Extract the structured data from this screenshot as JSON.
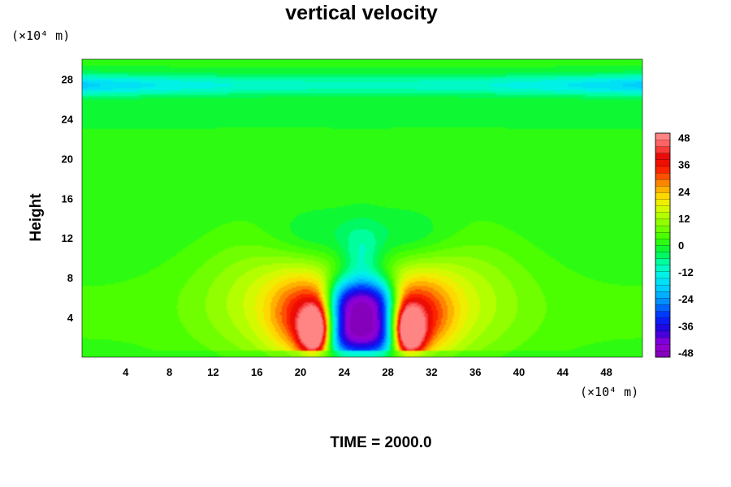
{
  "chart_data": {
    "type": "heatmap",
    "title": "vertical velocity",
    "ylabel": "Height",
    "x_unit": "(×10⁴ m)",
    "y_unit": "(×10⁴ m)",
    "footer": "TIME = 2000.0",
    "xlim": [
      0,
      51.3
    ],
    "ylim": [
      0,
      30
    ],
    "x_ticks": [
      4,
      8,
      12,
      16,
      20,
      24,
      28,
      32,
      36,
      40,
      44,
      48
    ],
    "y_ticks": [
      4,
      8,
      12,
      16,
      20,
      24,
      28
    ],
    "colorbar": {
      "min": -50,
      "max": 50,
      "tick_values": [
        -48,
        -36,
        -24,
        -12,
        0,
        12,
        24,
        36,
        48
      ],
      "tick_labels": [
        "-48",
        "-36",
        "-24",
        "-12",
        "0",
        "12",
        "24",
        "36",
        "48"
      ]
    },
    "features": [
      {
        "name": "central-downdraft",
        "x": 25.6,
        "y": 3.8,
        "value": -50
      },
      {
        "name": "left-updraft-core",
        "x": 21.2,
        "y": 2.6,
        "value": 38
      },
      {
        "name": "right-updraft-core",
        "x": 30.0,
        "y": 2.6,
        "value": 38
      },
      {
        "name": "upper-negative-band",
        "y": 27.5,
        "value": -12
      }
    ],
    "colors": {
      "background_field": "#44ff00",
      "cold_max": "#8000c0",
      "warm_max": "#ff7070"
    }
  }
}
